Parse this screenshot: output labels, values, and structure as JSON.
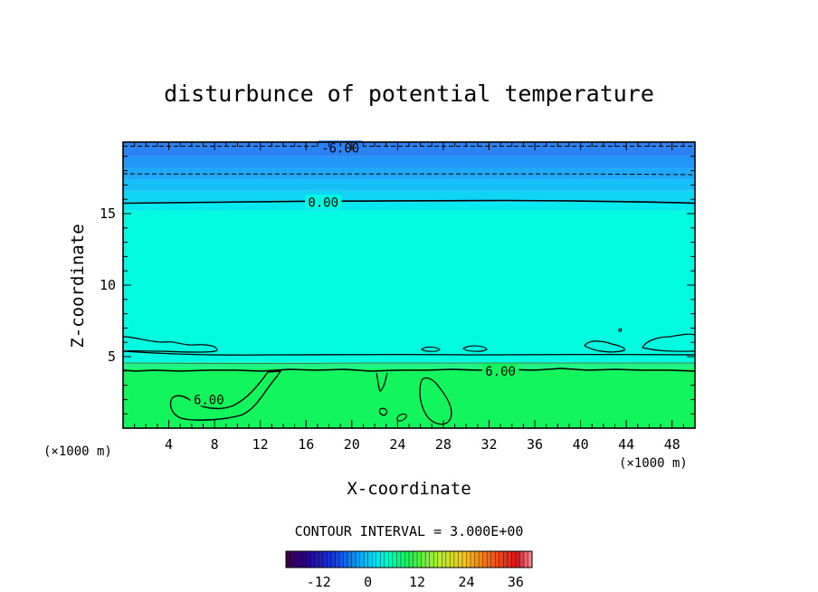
{
  "chart_data": {
    "type": "contour",
    "title": "disturbunce of potential temperature",
    "xlabel": "X-coordinate",
    "ylabel": "Z-coordinate",
    "x_unit_left": "(×1000 m)",
    "x_unit_right": "(×1000 m)",
    "xlim": [
      0,
      50
    ],
    "ylim": [
      0,
      20
    ],
    "x_ticks": [
      "4",
      "8",
      "12",
      "16",
      "20",
      "24",
      "28",
      "32",
      "36",
      "40",
      "44",
      "48"
    ],
    "x_tick_values": [
      4,
      8,
      12,
      16,
      20,
      24,
      28,
      32,
      36,
      40,
      44,
      48
    ],
    "y_ticks": [
      "5",
      "10",
      "15"
    ],
    "y_tick_values": [
      5,
      10,
      15
    ],
    "contour_interval_text": "CONTOUR INTERVAL = 3.000E+00",
    "contour_labels": [
      {
        "text": "-6.00",
        "x": 19,
        "z": 19.6
      },
      {
        "text": "0.00",
        "x": 17.5,
        "z": 15.8
      },
      {
        "text": "6.00",
        "x": 33,
        "z": 4.0
      },
      {
        "text": "6.00",
        "x": 7.5,
        "z": 2.0
      }
    ],
    "field_bands": [
      {
        "z_from": 0,
        "z_to": 4.2,
        "color": "#13f55d"
      },
      {
        "z_from": 4.2,
        "z_to": 4.6,
        "color": "#1ff585"
      },
      {
        "z_from": 4.6,
        "z_to": 15.2,
        "color": "#00fbe0"
      },
      {
        "z_from": 15.2,
        "z_to": 15.8,
        "color": "#06e9ee"
      },
      {
        "z_from": 15.8,
        "z_to": 16.6,
        "color": "#0fd5f5"
      },
      {
        "z_from": 16.6,
        "z_to": 17.4,
        "color": "#17bff8"
      },
      {
        "z_from": 17.4,
        "z_to": 18.2,
        "color": "#1fa9fa"
      },
      {
        "z_from": 18.2,
        "z_to": 19.0,
        "color": "#2596f9"
      },
      {
        "z_from": 19.0,
        "z_to": 20.0,
        "color": "#2a82f5"
      }
    ],
    "colorbar": {
      "ticks": [
        "-12",
        "0",
        "12",
        "24",
        "36"
      ],
      "tick_values": [
        -12,
        0,
        12,
        24,
        36
      ],
      "range": [
        -20,
        40
      ]
    }
  }
}
